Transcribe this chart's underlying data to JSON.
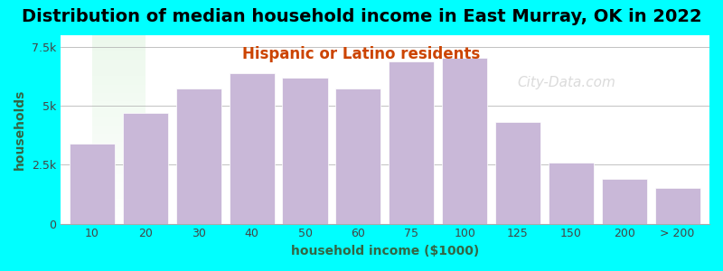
{
  "title": "Distribution of median household income in East Murray, OK in 2022",
  "subtitle": "Hispanic or Latino residents",
  "xlabel": "household income ($1000)",
  "ylabel": "households",
  "background_color": "#00ffff",
  "plot_bg_gradient_top": "#e8f5e8",
  "plot_bg_gradient_bottom": "#ffffff",
  "bar_color": "#c9b8d8",
  "bar_edge_color": "#ffffff",
  "title_fontsize": 14,
  "subtitle_fontsize": 12,
  "subtitle_color": "#cc4400",
  "ylabel_color": "#336644",
  "xlabel_color": "#336644",
  "categories": [
    "10",
    "20",
    "30",
    "40",
    "50",
    "60",
    "75",
    "100",
    "125",
    "150",
    "200",
    "> 200"
  ],
  "values": [
    3400,
    4700,
    5750,
    6400,
    6200,
    5750,
    6900,
    7050,
    4300,
    2600,
    1900,
    1500
  ],
  "ylim": [
    0,
    8000
  ],
  "yticks": [
    0,
    2500,
    5000,
    7500
  ],
  "ytick_labels": [
    "0",
    "2.5k",
    "5k",
    "7.5k"
  ],
  "watermark_text": "City-Data.com"
}
